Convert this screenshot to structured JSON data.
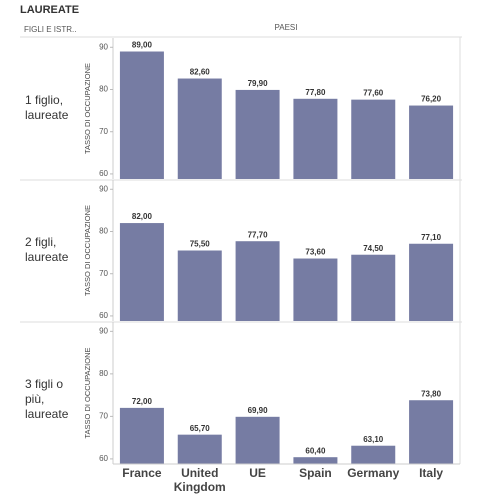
{
  "title": "LAUREATE",
  "row_header": "FIGLI E ISTR..",
  "column_header": "PAESI",
  "categories": [
    "France",
    "United Kingdom",
    "UE",
    "Spain",
    "Germany",
    "Italy"
  ],
  "chart_data": [
    {
      "type": "bar",
      "row_label": "1 figlio, laureate",
      "y_label": "TASSO DI OCCUPAZIONE",
      "color": "#767ca3",
      "values": [
        89.0,
        82.6,
        79.9,
        77.8,
        77.6,
        76.2
      ],
      "value_labels": [
        "89,00",
        "82,60",
        "79,90",
        "77,80",
        "77,60",
        "76,20"
      ],
      "ylim": [
        58.8,
        92.2
      ],
      "yticks": [
        60,
        70,
        80,
        90
      ]
    },
    {
      "type": "bar",
      "row_label": "2 figli, laureate",
      "y_label": "TASSO DI OCCUPAZIONE",
      "color": "#767ca3",
      "values": [
        82.0,
        75.5,
        77.7,
        73.6,
        74.5,
        77.1
      ],
      "value_labels": [
        "82,00",
        "75,50",
        "77,70",
        "73,60",
        "74,50",
        "77,10"
      ],
      "ylim": [
        58.8,
        92.2
      ],
      "yticks": [
        60,
        70,
        80,
        90
      ]
    },
    {
      "type": "bar",
      "row_label": "3 figli o più, laureate",
      "y_label": "TASSO DI OCCUPAZIONE",
      "color": "#767ca3",
      "values": [
        72.0,
        65.7,
        69.9,
        60.4,
        63.1,
        73.8
      ],
      "value_labels": [
        "72,00",
        "65,70",
        "69,90",
        "60,40",
        "63,10",
        "73,80"
      ],
      "ylim": [
        58.8,
        92.2
      ],
      "yticks": [
        60,
        70,
        80,
        90
      ]
    }
  ]
}
